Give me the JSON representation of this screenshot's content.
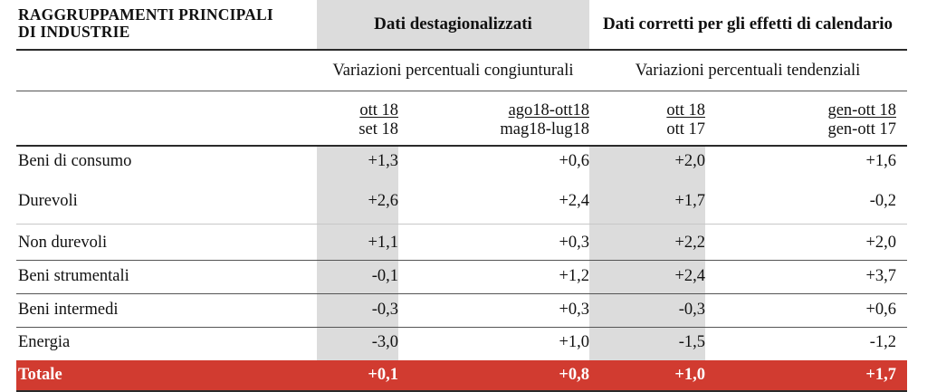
{
  "header": {
    "title_line1": "RAGGRUPPAMENTI PRINCIPALI",
    "title_line2": "DI INDUSTRIE",
    "group1": "Dati destagionalizzati",
    "group2": "Dati corretti per gli effetti di calendario",
    "sub1": "Variazioni percentuali congiunturali",
    "sub2": "Variazioni percentuali tendenziali"
  },
  "periods": [
    {
      "top": "ott 18",
      "bottom": "set 18"
    },
    {
      "top": "ago18-ott18",
      "bottom": "mag18-lug18"
    },
    {
      "top": "ott 18",
      "bottom": "ott 17"
    },
    {
      "top": "gen-ott 18",
      "bottom": "gen-ott 17"
    }
  ],
  "rows": [
    {
      "label": "Beni di consumo",
      "values": [
        "+1,3",
        "+0,6",
        "+2,0",
        "+1,6"
      ]
    },
    {
      "label": "Durevoli",
      "values": [
        "+2,6",
        "+2,4",
        "+1,7",
        "-0,2"
      ]
    },
    {
      "label": "Non durevoli",
      "values": [
        "+1,1",
        "+0,3",
        "+2,2",
        "+2,0"
      ]
    },
    {
      "label": "Beni strumentali",
      "values": [
        "-0,1",
        "+1,2",
        "+2,4",
        "+3,7"
      ]
    },
    {
      "label": "Beni intermedi",
      "values": [
        "-0,3",
        "+0,3",
        "-0,3",
        "+0,6"
      ]
    },
    {
      "label": "Energia",
      "values": [
        "-3,0",
        "+1,0",
        "-1,5",
        "-1,2"
      ]
    }
  ],
  "total": {
    "label": "Totale",
    "values": [
      "+0,1",
      "+0,8",
      "+1,0",
      "+1,7"
    ]
  },
  "colors": {
    "shade": "#dcdcdc",
    "total_bg": "#d13b30"
  }
}
